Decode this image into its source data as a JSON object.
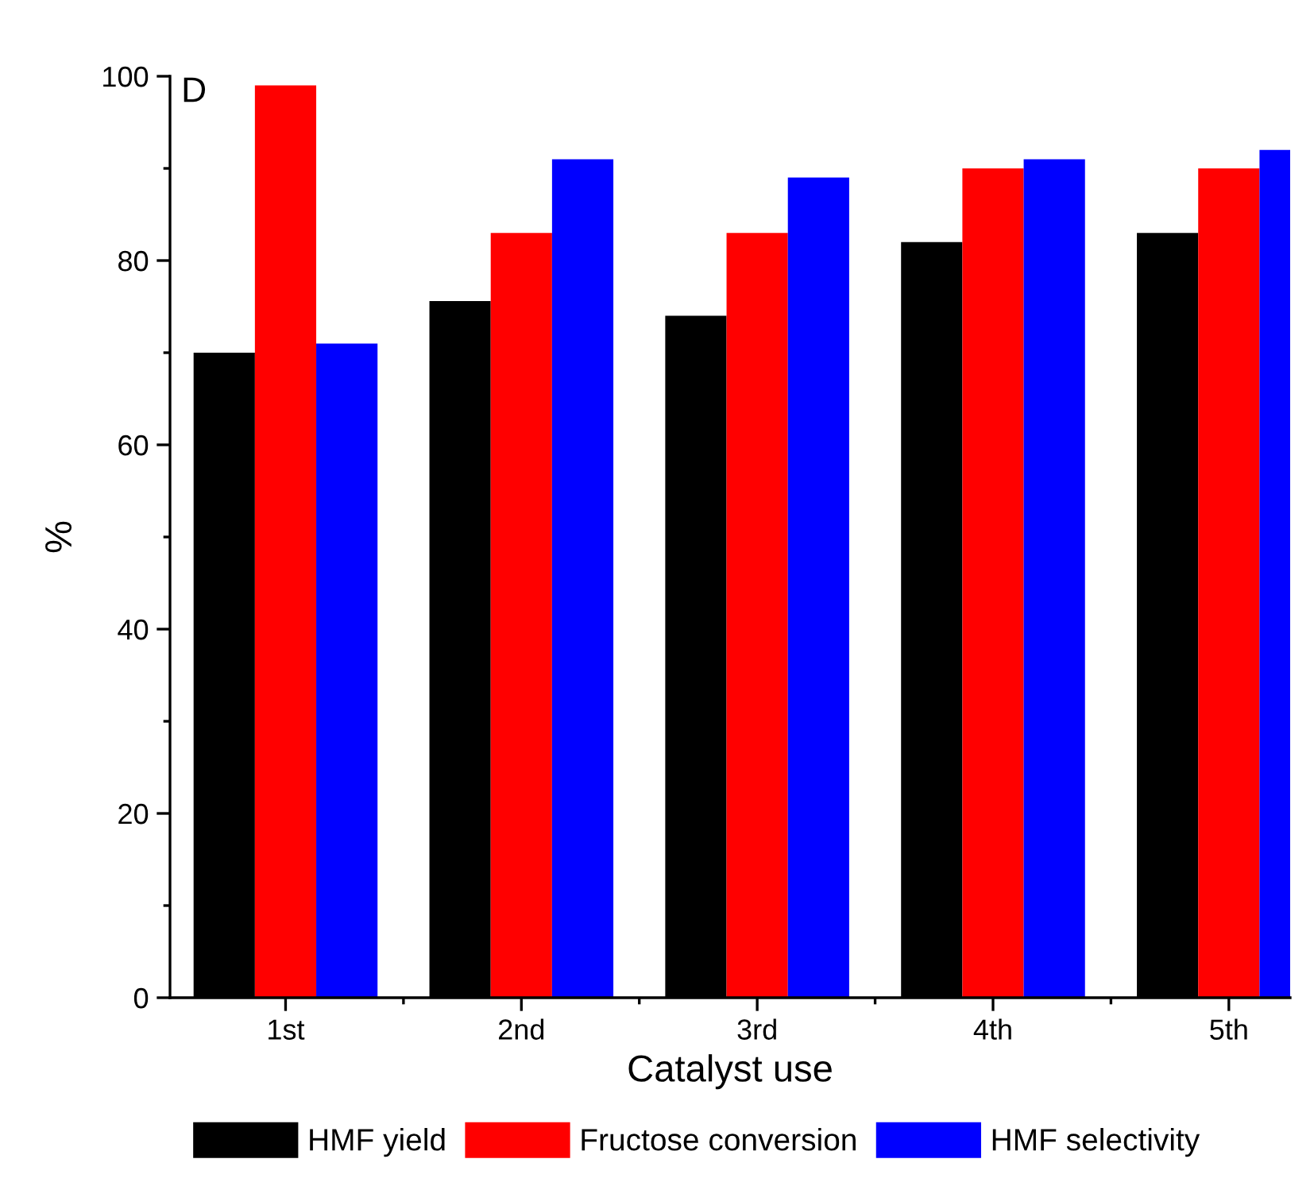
{
  "chart_data": {
    "type": "bar",
    "xlabel": "Catalyst use",
    "ylabel": "%",
    "annotations": [
      "D"
    ],
    "categories": [
      "1st",
      "2nd",
      "3rd",
      "4th",
      "5th"
    ],
    "series": [
      {
        "name": "HMF yield",
        "color": "#000000",
        "values": [
          70,
          75.6,
          74,
          82,
          83
        ]
      },
      {
        "name": "Fructose conversion",
        "color": "#ff0000",
        "values": [
          99,
          83,
          83,
          90,
          90
        ]
      },
      {
        "name": "HMF selectivity",
        "color": "#0000ff",
        "values": [
          71,
          91,
          89,
          91,
          92
        ]
      }
    ],
    "ylim": [
      0,
      100
    ],
    "yticks": [
      0,
      20,
      40,
      60,
      80,
      100
    ],
    "legend": "bottom",
    "grid": false
  }
}
